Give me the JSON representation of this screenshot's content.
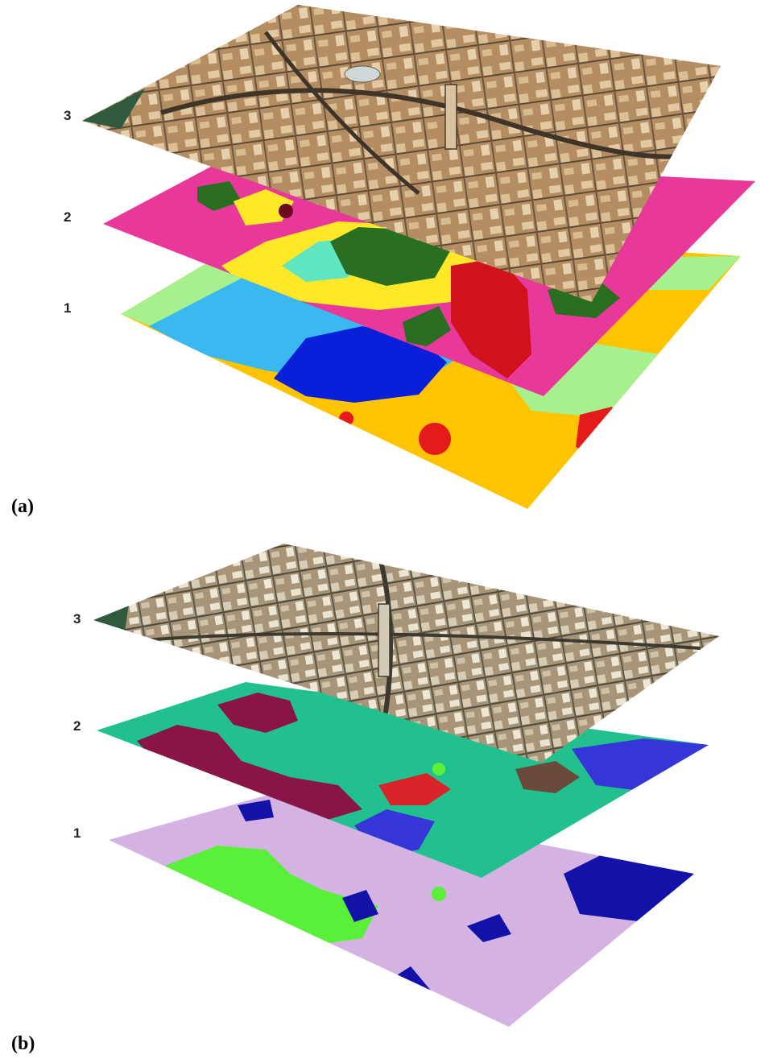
{
  "panels": [
    {
      "caption": "(a)",
      "layer_labels": [
        "3",
        "2",
        "1"
      ],
      "layers": [
        {
          "label": "3",
          "kind": "aerial-image"
        },
        {
          "label": "2",
          "kind": "classification-map",
          "dominant_color": "#e8389a"
        },
        {
          "label": "1",
          "kind": "classification-map",
          "dominant_color": "#ffc400"
        }
      ]
    },
    {
      "caption": "(b)",
      "layer_labels": [
        "3",
        "2",
        "1"
      ],
      "layers": [
        {
          "label": "3",
          "kind": "aerial-image"
        },
        {
          "label": "2",
          "kind": "classification-map",
          "dominant_color": "#22c08e"
        },
        {
          "label": "1",
          "kind": "classification-map",
          "dominant_color": "#d4b2e2"
        }
      ]
    }
  ]
}
